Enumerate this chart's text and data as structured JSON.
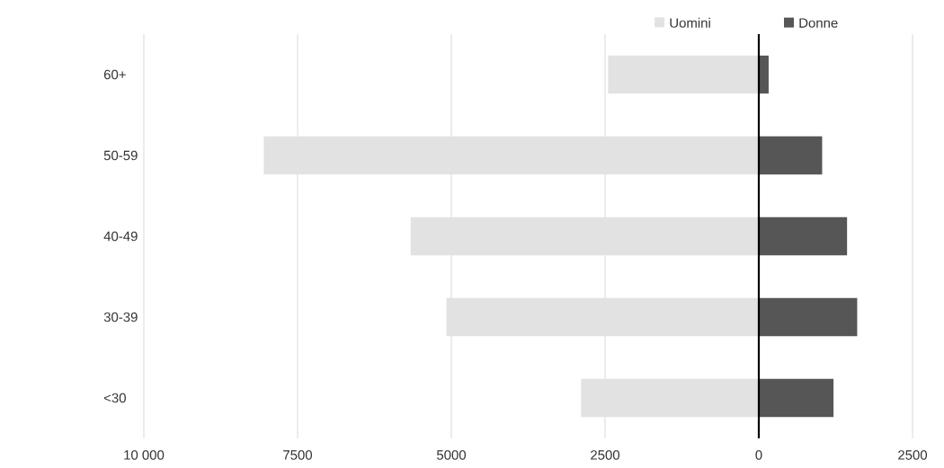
{
  "chart_data": {
    "type": "bar",
    "orientation": "horizontal",
    "categories": [
      "60+",
      "50-59",
      "40-49",
      "30-39",
      "<30"
    ],
    "series": [
      {
        "name": "Uomini",
        "color": "#e1e2e1",
        "values": [
          -2450,
          -8050,
          -5660,
          -5080,
          -2890
        ]
      },
      {
        "name": "Donne",
        "color": "#555655",
        "values": [
          160,
          1030,
          1435,
          1600,
          1215
        ]
      }
    ],
    "xlim": [
      -10000,
      2500
    ],
    "xticks": [
      {
        "value": -10000,
        "label": "10 000"
      },
      {
        "value": -7500,
        "label": "7500"
      },
      {
        "value": -5000,
        "label": "5000"
      },
      {
        "value": -2500,
        "label": "2500"
      },
      0,
      2500
    ],
    "ref_lines": [
      {
        "axis": "x",
        "value": 0,
        "color": "#000000"
      }
    ],
    "grid": "x",
    "legend": "top",
    "stacked": true
  }
}
